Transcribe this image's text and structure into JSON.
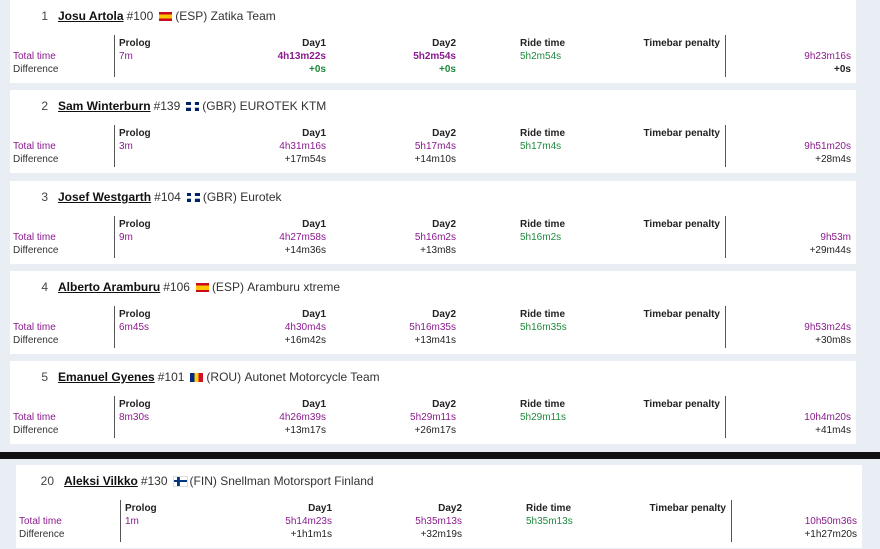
{
  "labels": {
    "total_time": "Total time",
    "difference": "Difference",
    "prolog": "Prolog",
    "day1": "Day1",
    "day2": "Day2",
    "ride_time": "Ride time",
    "timebar_penalty": "Timebar penalty"
  },
  "riders": [
    {
      "rank": "1",
      "name": "Josu Artola",
      "number": "#100",
      "flag": "es-flag-icon",
      "country": "(ESP)",
      "team": "Zatika Team",
      "prolog": "7m",
      "day1": "4h13m22s",
      "day1_diff": "+0s",
      "day2": "5h2m54s",
      "day2_diff": "+0s",
      "ride_time": "5h2m54s",
      "total": "9h23m16s",
      "total_diff": "+0s"
    },
    {
      "rank": "2",
      "name": "Sam Winterburn",
      "number": "#139",
      "flag": "gb-flag-icon",
      "country": "(GBR)",
      "team": "EUROTEK KTM",
      "prolog": "3m",
      "day1": "4h31m16s",
      "day1_diff": "+17m54s",
      "day2": "5h17m4s",
      "day2_diff": "+14m10s",
      "ride_time": "5h17m4s",
      "total": "9h51m20s",
      "total_diff": "+28m4s"
    },
    {
      "rank": "3",
      "name": "Josef Westgarth",
      "number": "#104",
      "flag": "gb-flag-icon",
      "country": "(GBR)",
      "team": "Eurotek",
      "prolog": "9m",
      "day1": "4h27m58s",
      "day1_diff": "+14m36s",
      "day2": "5h16m2s",
      "day2_diff": "+13m8s",
      "ride_time": "5h16m2s",
      "total": "9h53m",
      "total_diff": "+29m44s"
    },
    {
      "rank": "4",
      "name": "Alberto Aramburu",
      "number": "#106",
      "flag": "es-flag-icon",
      "country": "(ESP)",
      "team": "Aramburu xtreme",
      "prolog": "6m45s",
      "day1": "4h30m4s",
      "day1_diff": "+16m42s",
      "day2": "5h16m35s",
      "day2_diff": "+13m41s",
      "ride_time": "5h16m35s",
      "total": "9h53m24s",
      "total_diff": "+30m8s"
    },
    {
      "rank": "5",
      "name": "Emanuel Gyenes",
      "number": "#101",
      "flag": "ro-flag-icon",
      "country": "(ROU)",
      "team": "Autonet Motorcycle Team",
      "prolog": "8m30s",
      "day1": "4h26m39s",
      "day1_diff": "+13m17s",
      "day2": "5h29m11s",
      "day2_diff": "+26m17s",
      "ride_time": "5h29m11s",
      "total": "10h4m20s",
      "total_diff": "+41m4s"
    },
    {
      "rank": "20",
      "name": "Aleksi Vilkko",
      "number": "#130",
      "flag": "fi-flag-icon",
      "country": "(FIN)",
      "team": "Snellman Motorsport Finland",
      "prolog": "1m",
      "day1": "5h14m23s",
      "day1_diff": "+1h1m1s",
      "day2": "5h35m13s",
      "day2_diff": "+32m19s",
      "ride_time": "5h35m13s",
      "total": "10h50m36s",
      "total_diff": "+1h27m20s"
    }
  ],
  "colors": {
    "time_purple": "#8a1a8e",
    "ride_green": "#1e8a3c",
    "background": "#e9eef5"
  }
}
